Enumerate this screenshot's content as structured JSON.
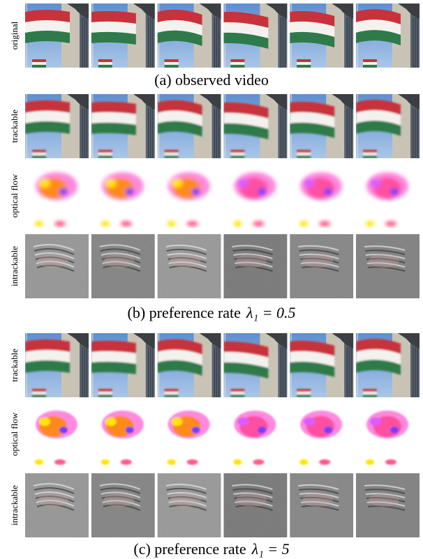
{
  "figure": {
    "sections": [
      {
        "rows": [
          "original"
        ],
        "caption": {
          "text": "(a) observed video"
        }
      },
      {
        "rows": [
          "trackable",
          "optical flow",
          "intrackable"
        ],
        "caption": {
          "text": "(b) preference rate",
          "equation": "λ₁ = 0.5"
        }
      },
      {
        "rows": [
          "trackable",
          "optical flow",
          "intrackable"
        ],
        "caption": {
          "text": "(c) preference rate",
          "equation": "λ₁ = 5"
        }
      }
    ]
  }
}
